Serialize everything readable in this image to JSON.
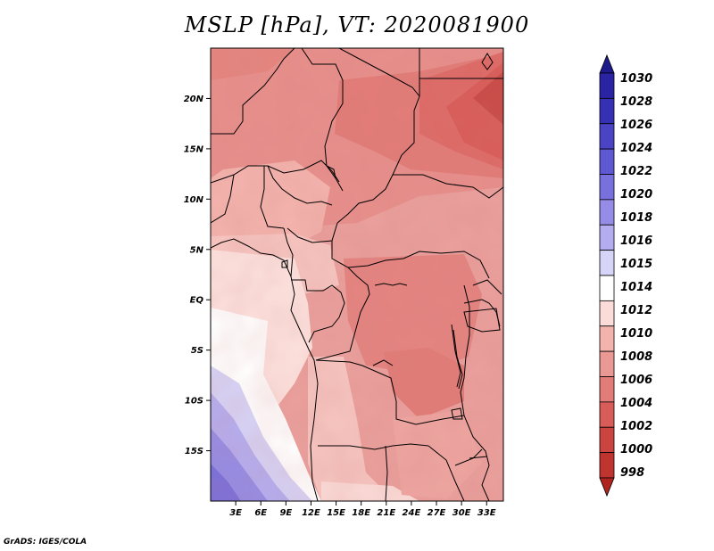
{
  "title": "MSLP [hPa], VT: 2020081900",
  "credit": "GrADS: IGES/COLA",
  "map": {
    "variable": "MSLP",
    "units": "hPa",
    "lon_range": [
      0,
      35
    ],
    "lat_range": [
      -20,
      25
    ],
    "lat_ticks": [
      {
        "value": 20,
        "label": "20N"
      },
      {
        "value": 15,
        "label": "15N"
      },
      {
        "value": 10,
        "label": "10N"
      },
      {
        "value": 5,
        "label": "5N"
      },
      {
        "value": 0,
        "label": "EQ"
      },
      {
        "value": -5,
        "label": "5S"
      },
      {
        "value": -10,
        "label": "10S"
      },
      {
        "value": -15,
        "label": "15S"
      }
    ],
    "lon_ticks": [
      {
        "value": 3,
        "label": "3E"
      },
      {
        "value": 6,
        "label": "6E"
      },
      {
        "value": 9,
        "label": "9E"
      },
      {
        "value": 12,
        "label": "12E"
      },
      {
        "value": 15,
        "label": "15E"
      },
      {
        "value": 18,
        "label": "18E"
      },
      {
        "value": 21,
        "label": "21E"
      },
      {
        "value": 24,
        "label": "24E"
      },
      {
        "value": 27,
        "label": "27E"
      },
      {
        "value": 30,
        "label": "30E"
      },
      {
        "value": 33,
        "label": "33E"
      }
    ]
  },
  "colorbar": {
    "levels": [
      {
        "label": "1030",
        "color": "#1d1a8c"
      },
      {
        "label": "1028",
        "color": "#2a23a3"
      },
      {
        "label": "1026",
        "color": "#3631b4"
      },
      {
        "label": "1024",
        "color": "#4a44c4"
      },
      {
        "label": "1022",
        "color": "#5e58d2"
      },
      {
        "label": "1020",
        "color": "#7870dc"
      },
      {
        "label": "1018",
        "color": "#948ce6"
      },
      {
        "label": "1016",
        "color": "#b4aef0"
      },
      {
        "label": "1015",
        "color": "#d6d4f8"
      },
      {
        "label": "1014",
        "color": "#ffffff"
      },
      {
        "label": "1012",
        "color": "#fbdcd8"
      },
      {
        "label": "1010",
        "color": "#f4b4ae"
      },
      {
        "label": "1008",
        "color": "#ea9894"
      },
      {
        "label": "1006",
        "color": "#e27c78"
      },
      {
        "label": "1004",
        "color": "#d85c58"
      },
      {
        "label": "1002",
        "color": "#cc4440"
      },
      {
        "label": "1000",
        "color": "#c03430"
      },
      {
        "label": "998",
        "color": "#b02420"
      }
    ]
  }
}
